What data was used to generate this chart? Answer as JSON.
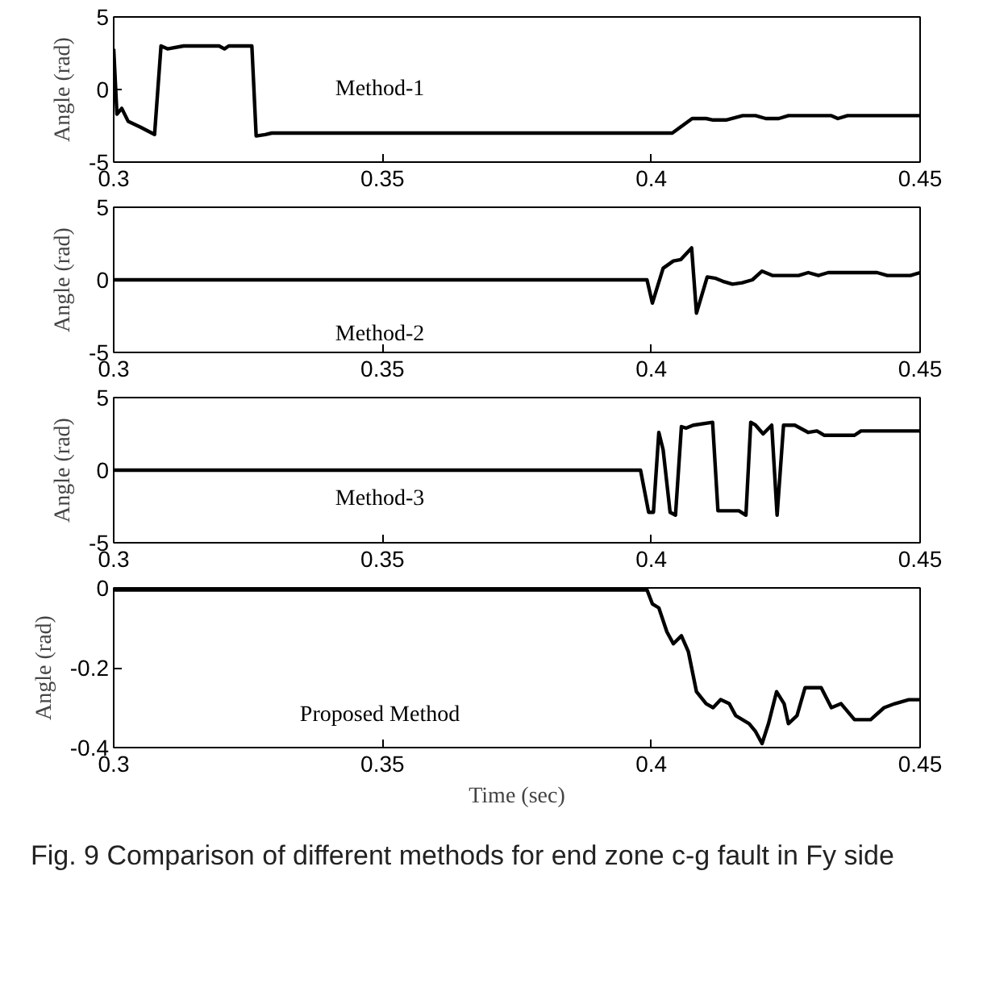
{
  "chart_data": [
    {
      "type": "line",
      "ylabel": "Angle (rad)",
      "xlim": [
        0.3,
        0.45
      ],
      "ylim": [
        -5,
        5
      ],
      "xticks": [
        0.3,
        0.35,
        0.4,
        0.45
      ],
      "yticks": [
        -5,
        0,
        5
      ],
      "grid": false,
      "annotations": [
        "Method-1"
      ],
      "series": [
        {
          "color": "#000000",
          "x": [
            0.3,
            0.3006,
            0.3015,
            0.3027,
            0.305,
            0.3076,
            0.3088,
            0.31,
            0.313,
            0.3196,
            0.3206,
            0.3214,
            0.3257,
            0.3265,
            0.3282,
            0.3294,
            0.4039,
            0.4076,
            0.4102,
            0.4115,
            0.4139,
            0.417,
            0.4194,
            0.4213,
            0.4237,
            0.4255,
            0.4335,
            0.4347,
            0.4365,
            0.45
          ],
          "values": [
            2.8,
            -1.7,
            -1.3,
            -2.2,
            -2.6,
            -3.1,
            3.0,
            2.8,
            3.0,
            3.0,
            2.8,
            3.0,
            3.0,
            -3.2,
            -3.1,
            -3.0,
            -3.0,
            -2.0,
            -2.0,
            -2.1,
            -2.1,
            -1.8,
            -1.8,
            -2.0,
            -2.0,
            -1.8,
            -1.8,
            -2.0,
            -1.8,
            -1.8
          ]
        }
      ]
    },
    {
      "type": "line",
      "ylabel": "Angle (rad)",
      "xlim": [
        0.3,
        0.45
      ],
      "ylim": [
        -5,
        5
      ],
      "xticks": [
        0.3,
        0.35,
        0.4,
        0.45
      ],
      "yticks": [
        -5,
        0,
        5
      ],
      "grid": false,
      "annotations": [
        "Method-2"
      ],
      "series": [
        {
          "color": "#000000",
          "x": [
            0.3,
            0.3992,
            0.4002,
            0.4022,
            0.4041,
            0.4055,
            0.4075,
            0.4084,
            0.4104,
            0.412,
            0.4133,
            0.4151,
            0.4169,
            0.4188,
            0.4206,
            0.4225,
            0.4274,
            0.4292,
            0.4311,
            0.4329,
            0.442,
            0.4439,
            0.4482,
            0.45
          ],
          "values": [
            0,
            0,
            -1.6,
            0.8,
            1.3,
            1.4,
            2.2,
            -2.3,
            0.2,
            0.1,
            -0.1,
            -0.3,
            -0.2,
            0,
            0.6,
            0.3,
            0.3,
            0.5,
            0.3,
            0.5,
            0.5,
            0.3,
            0.3,
            0.5
          ]
        }
      ]
    },
    {
      "type": "line",
      "ylabel": "Angle (rad)",
      "xlim": [
        0.3,
        0.45
      ],
      "ylim": [
        -5,
        5
      ],
      "xticks": [
        0.3,
        0.35,
        0.4,
        0.45
      ],
      "yticks": [
        -5,
        0,
        5
      ],
      "grid": false,
      "annotations": [
        "Method-3"
      ],
      "series": [
        {
          "color": "#000000",
          "x": [
            0.3,
            0.398,
            0.3995,
            0.4004,
            0.4014,
            0.4022,
            0.4035,
            0.4045,
            0.4056,
            0.4065,
            0.4078,
            0.4114,
            0.4124,
            0.4163,
            0.4176,
            0.4185,
            0.4194,
            0.4208,
            0.4224,
            0.4234,
            0.4246,
            0.4267,
            0.4292,
            0.4308,
            0.4322,
            0.4378,
            0.439,
            0.45
          ],
          "values": [
            0,
            0,
            -2.9,
            -2.9,
            2.6,
            1.4,
            -2.9,
            -3.1,
            3.0,
            2.9,
            3.1,
            3.3,
            -2.8,
            -2.8,
            -3.1,
            3.3,
            3.1,
            2.5,
            3.1,
            -3.1,
            3.1,
            3.1,
            2.6,
            2.7,
            2.4,
            2.4,
            2.7,
            2.7
          ]
        }
      ]
    },
    {
      "type": "line",
      "xlabel": "Time (sec)",
      "ylabel": "Angle (rad)",
      "xlim": [
        0.3,
        0.45
      ],
      "ylim": [
        -0.4,
        0
      ],
      "xticks": [
        0.3,
        0.35,
        0.4,
        0.45
      ],
      "yticks": [
        -0.4,
        -0.2,
        0
      ],
      "grid": false,
      "annotations": [
        "Proposed Method",
        "Fig. 9 Comparison of different methods for end zone c-g fault in Fy side"
      ],
      "series": [
        {
          "color": "#000000",
          "x": [
            0.3,
            0.3992,
            0.4002,
            0.4014,
            0.4029,
            0.4041,
            0.4056,
            0.4069,
            0.4084,
            0.4102,
            0.4115,
            0.4129,
            0.4145,
            0.4157,
            0.4182,
            0.4194,
            0.4206,
            0.4218,
            0.4233,
            0.4247,
            0.4255,
            0.4271,
            0.4286,
            0.4304,
            0.4316,
            0.4335,
            0.4353,
            0.4378,
            0.4408,
            0.4433,
            0.4453,
            0.4479,
            0.45
          ],
          "values": [
            -0.005,
            -0.005,
            -0.04,
            -0.05,
            -0.11,
            -0.14,
            -0.12,
            -0.16,
            -0.26,
            -0.29,
            -0.3,
            -0.28,
            -0.29,
            -0.32,
            -0.34,
            -0.36,
            -0.39,
            -0.34,
            -0.26,
            -0.29,
            -0.34,
            -0.32,
            -0.25,
            -0.25,
            -0.25,
            -0.3,
            -0.29,
            -0.33,
            -0.33,
            -0.3,
            -0.29,
            -0.28,
            -0.28
          ]
        }
      ]
    }
  ]
}
